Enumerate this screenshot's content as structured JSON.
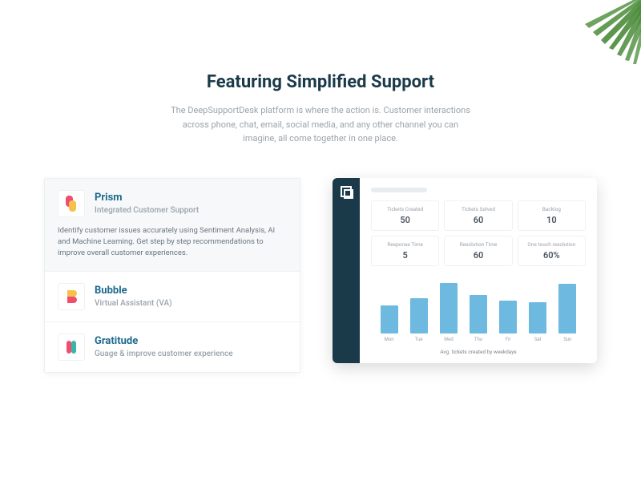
{
  "hero": {
    "title": "Featuring Simplified Support",
    "subtitle": "The DeepSupportDesk platform is where the action is. Customer interactions across phone, chat, email, social media, and any other channel you can imagine, all come together in one place."
  },
  "cards": [
    {
      "title": "Prism",
      "subtitle": "Integrated Customer Support",
      "description": "Identify customer issues accurately using Sentiment Analysis, AI and Machine Learning. Get step by step recommendations to improve overall customer experiences.",
      "active": true,
      "icon_colors": [
        "#f04e6e",
        "#f6c146"
      ]
    },
    {
      "title": "Bubble",
      "subtitle": "Virtual Assistant (VA)",
      "description": "",
      "active": false,
      "icon_colors": [
        "#f6c146",
        "#f04e6e"
      ]
    },
    {
      "title": "Gratitude",
      "subtitle": "Guage & improve customer experience",
      "description": "",
      "active": false,
      "icon_colors": [
        "#f04e6e",
        "#3ab6a8"
      ]
    }
  ],
  "dashboard": {
    "stats": [
      {
        "label": "Tickets Created",
        "value": "50"
      },
      {
        "label": "Tickets Solved",
        "value": "60"
      },
      {
        "label": "Backlog",
        "value": "10"
      },
      {
        "label": "Response Time",
        "value": "5"
      },
      {
        "label": "Resolution Time",
        "value": "60"
      },
      {
        "label": "One touch resolution",
        "value": "60%"
      }
    ],
    "chart": {
      "type": "bar",
      "categories": [
        "Mon",
        "Tue",
        "Wed",
        "Thu",
        "Fri",
        "Sat",
        "Sun"
      ],
      "values": [
        50,
        62,
        90,
        68,
        58,
        55,
        88
      ],
      "bar_color": "#6db9e0",
      "ylim": [
        0,
        100
      ],
      "caption": "Avg. tickets created by weekdays",
      "background_color": "#ffffff"
    },
    "sidebar_color": "#1a3a4a"
  },
  "colors": {
    "heading": "#1a3a4a",
    "link": "#1e6a8e",
    "muted": "#9aa3ab",
    "body": "#6a7580"
  }
}
